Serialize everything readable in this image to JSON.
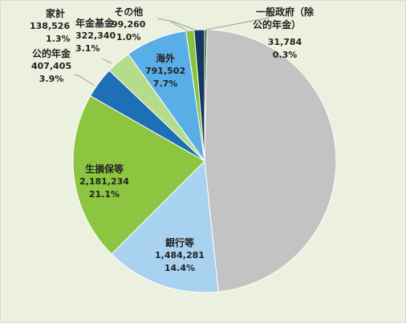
{
  "chart_data": {
    "type": "pie",
    "slices": [
      {
        "name": "一般政府（除公的年金）",
        "value": "31,784",
        "share": 0.3,
        "pct": "0.3%",
        "color": "#2e6a2e"
      },
      {
        "name": "",
        "value": "",
        "share": 48.8,
        "pct": "",
        "color": "#c3c3c3"
      },
      {
        "name": "銀行等",
        "value": "1,484,281",
        "share": 14.4,
        "pct": "14.4%",
        "color": "#a9d2f1"
      },
      {
        "name": "生損保等",
        "value": "2,181,234",
        "share": 21.1,
        "pct": "21.1%",
        "color": "#8cc641"
      },
      {
        "name": "公的年金",
        "value": "407,405",
        "share": 3.9,
        "pct": "3.9%",
        "color": "#1f6fb6"
      },
      {
        "name": "年金基金",
        "value": "322,340",
        "share": 3.1,
        "pct": "3.1%",
        "color": "#b5dc8d"
      },
      {
        "name": "海外",
        "value": "791,502",
        "share": 7.7,
        "pct": "7.7%",
        "color": "#5aaee8"
      },
      {
        "name": "その他",
        "value": "99,260",
        "share": 1.0,
        "pct": "1.0%",
        "color": "#86c440"
      },
      {
        "name": "家計",
        "value": "138,526",
        "share": 1.3,
        "pct": "1.3%",
        "color": "#17375e"
      }
    ]
  },
  "labels": {
    "govt": {
      "name_line1": "一般政府（除",
      "name_line2": "公的年金）",
      "value": "31,784",
      "pct": "0.3%"
    },
    "bank": {
      "name": "銀行等",
      "value": "1,484,281",
      "pct": "14.4%"
    },
    "insurance": {
      "name": "生損保等",
      "value": "2,181,234",
      "pct": "21.1%"
    },
    "public_pension": {
      "name": "公的年金",
      "value": "407,405",
      "pct": "3.9%"
    },
    "pension_fund": {
      "name": "年金基金",
      "value": "322,340",
      "pct": "3.1%"
    },
    "overseas": {
      "name": "海外",
      "value": "791,502",
      "pct": "7.7%"
    },
    "other": {
      "name": "その他",
      "value": "99,260",
      "pct": "1.0%"
    },
    "household": {
      "name": "家計",
      "value": "138,526",
      "pct": "1.3%"
    }
  }
}
